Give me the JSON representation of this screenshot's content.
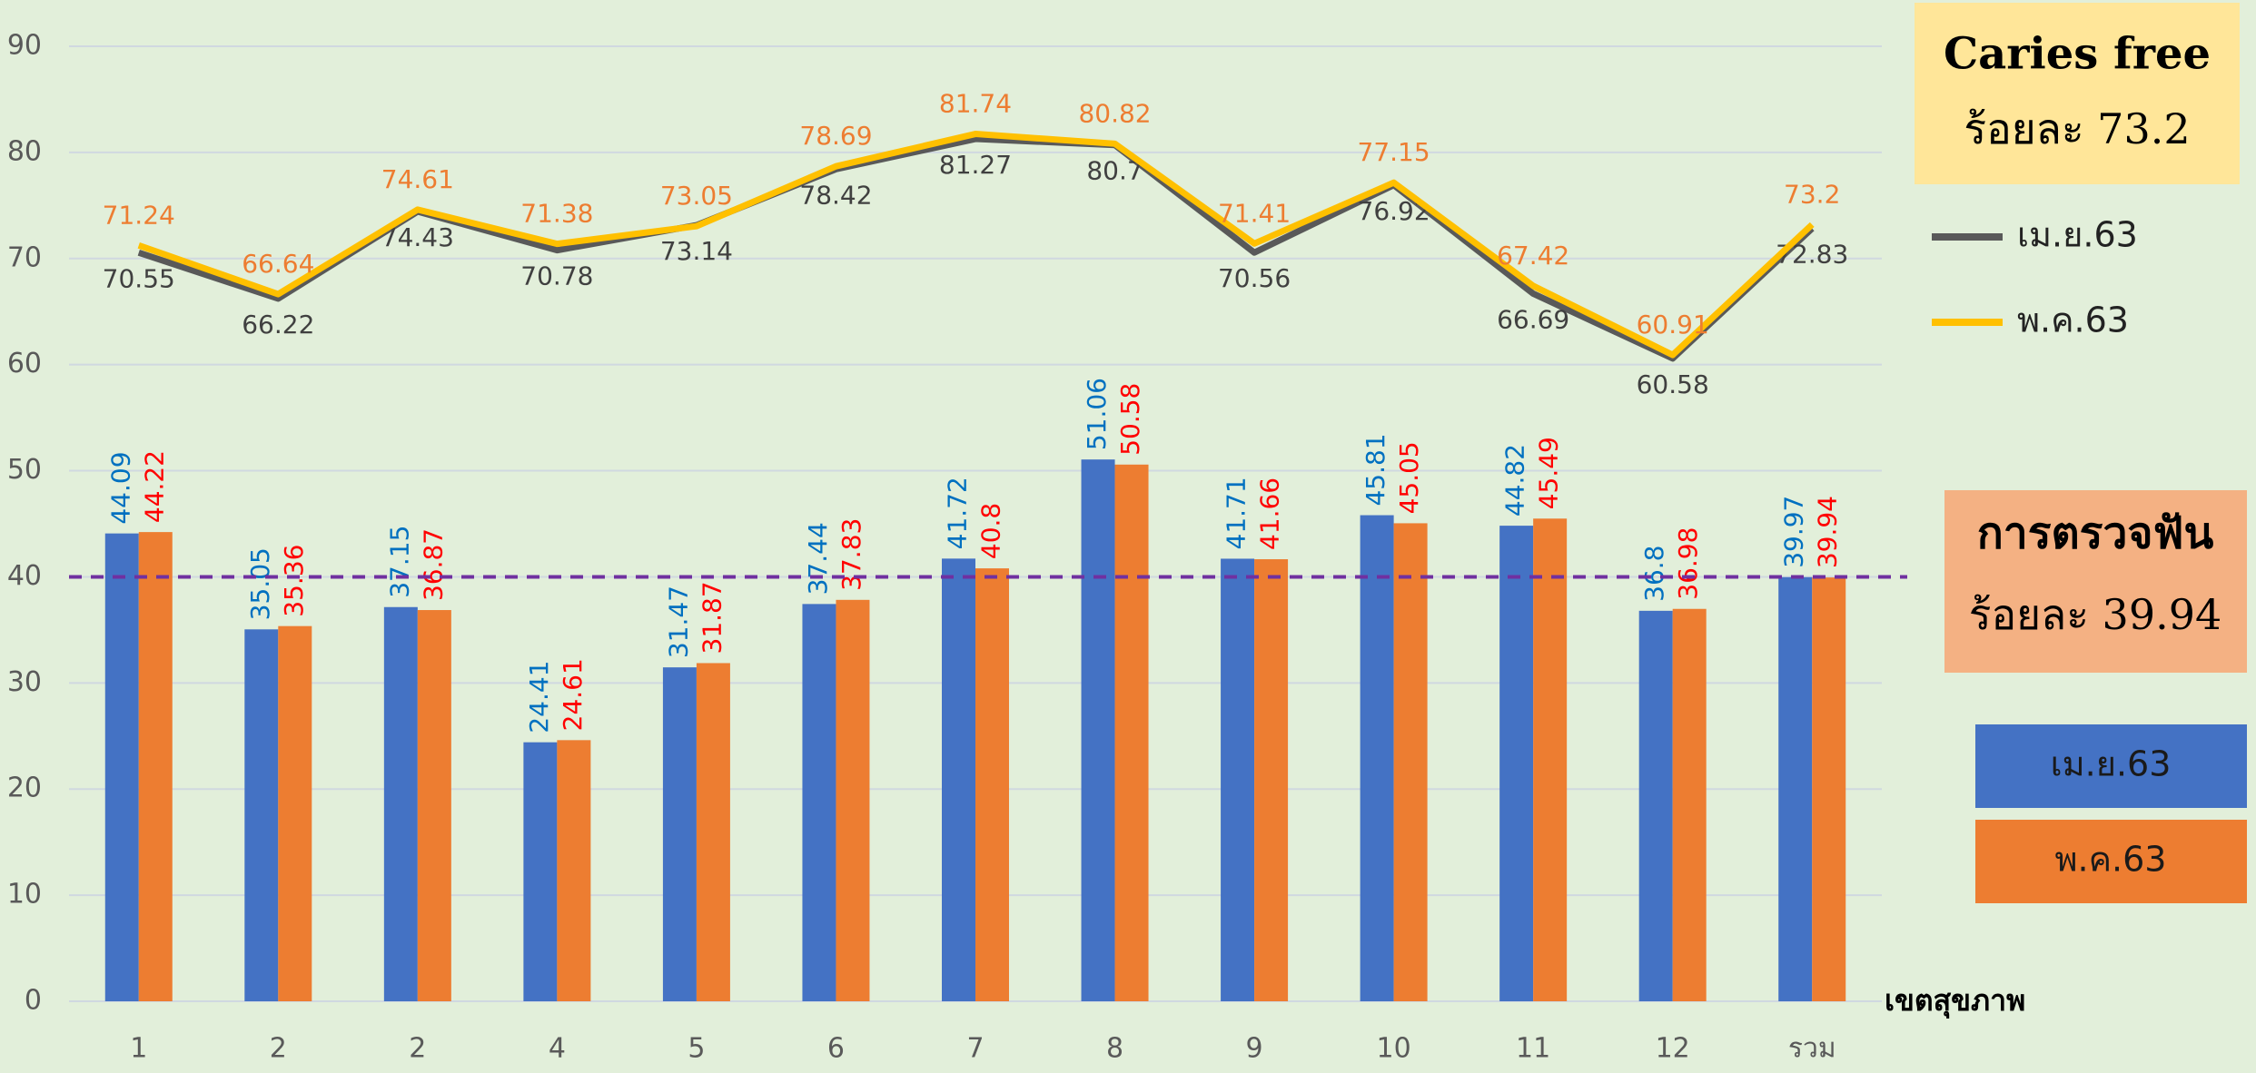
{
  "chart_data": {
    "type": "combo",
    "categories": [
      "1",
      "2",
      "2",
      "4",
      "5",
      "6",
      "7",
      "8",
      "9",
      "10",
      "11",
      "12",
      "รวม"
    ],
    "xlabel": "เขตสุขภาพ",
    "series": [
      {
        "name": "เม.ย.63",
        "type": "bar",
        "color": "#4472c4",
        "label_color": "#0070c0",
        "values": [
          44.09,
          35.05,
          37.15,
          24.41,
          31.47,
          37.44,
          41.72,
          51.06,
          41.71,
          45.81,
          44.82,
          36.8,
          39.97
        ]
      },
      {
        "name": "พ.ค.63",
        "type": "bar",
        "color": "#ed7d31",
        "label_color": "#ff0000",
        "values": [
          44.22,
          35.36,
          36.87,
          24.61,
          31.87,
          37.83,
          40.8,
          50.58,
          41.66,
          45.05,
          45.49,
          36.98,
          39.94
        ]
      },
      {
        "name": "เม.ย.63",
        "type": "line",
        "color": "#595959",
        "label_color": "#404040",
        "values": [
          70.55,
          66.22,
          74.43,
          70.78,
          73.14,
          78.42,
          81.27,
          80.7,
          70.56,
          76.92,
          66.69,
          60.58,
          72.83
        ]
      },
      {
        "name": "พ.ค.63",
        "type": "line",
        "color": "#ffc000",
        "label_color": "#ed7d31",
        "values": [
          71.24,
          66.64,
          74.61,
          71.38,
          73.05,
          78.69,
          81.74,
          80.82,
          71.41,
          77.15,
          67.42,
          60.91,
          73.2
        ]
      }
    ],
    "ylim": [
      0,
      90
    ],
    "yticks": [
      0,
      10,
      20,
      30,
      40,
      50,
      60,
      70,
      80,
      90
    ],
    "grid": true,
    "reference_line": {
      "value": 40,
      "color": "#7030a0"
    },
    "annotations": [
      {
        "title": "Caries free",
        "subtitle": "ร้อยละ 73.2",
        "color": "#ffe699"
      },
      {
        "title": "การตรวจฟัน",
        "subtitle": "ร้อยละ 39.94",
        "color": "#f4b183"
      }
    ]
  }
}
